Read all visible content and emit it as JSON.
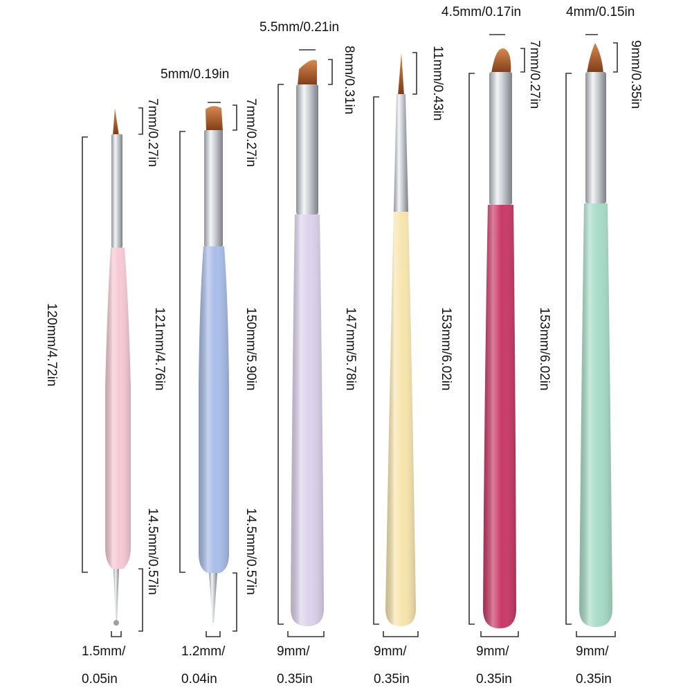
{
  "colors": {
    "background": "#ffffff",
    "dimension_line": "#333333",
    "ferrule": "#c9ccd0",
    "bristle": "#a85a2a"
  },
  "brushes": [
    {
      "id": "brush-1",
      "handle_color": "#f6c9d4",
      "tip": "liner",
      "tail": "dotting-ball",
      "top_width": "",
      "tip_length": "7mm/0.27in",
      "handle_length": "120mm/4.72in",
      "ferrule_length": "121mm/4.76in",
      "tail_length": "14.5mm/0.57in",
      "bottom_width": [
        "1.5mm/",
        "0.05in"
      ]
    },
    {
      "id": "brush-2",
      "handle_color": "#a9bde8",
      "tip": "flat",
      "tail": "dotting-point",
      "top_width": "5mm/0.19in",
      "tip_length": "7mm/0.27in",
      "handle_length": "150mm/5.90in",
      "ferrule_length": "",
      "tail_length": "14.5mm/0.57in",
      "bottom_width": [
        "1.2mm/",
        "0.04in"
      ]
    },
    {
      "id": "brush-3",
      "handle_color": "#dcd2ec",
      "tip": "angled",
      "tail": "rounded",
      "top_width": "5.5mm/0.21in",
      "tip_length": "8mm/0.31in",
      "handle_length": "147mm/5.78in",
      "ferrule_length": "",
      "tail_length": "",
      "bottom_width": [
        "9mm/",
        "0.35in"
      ]
    },
    {
      "id": "brush-4",
      "handle_color": "#f7e5ae",
      "tip": "liner",
      "tail": "rounded",
      "top_width": "",
      "tip_length": "11mm/0.43in",
      "handle_length": "153mm/6.02in",
      "ferrule_length": "",
      "tail_length": "",
      "bottom_width": [
        "9mm/",
        "0.35in"
      ]
    },
    {
      "id": "brush-5",
      "handle_color": "#c93a68",
      "tip": "oval",
      "tail": "rounded",
      "top_width": "4.5mm/0.17in",
      "tip_length": "7mm/0.27in",
      "handle_length": "153mm/6.02in",
      "ferrule_length": "",
      "tail_length": "",
      "bottom_width": [
        "9mm/",
        "0.35in"
      ]
    },
    {
      "id": "brush-6",
      "handle_color": "#a8dcc8",
      "tip": "pointed",
      "tail": "rounded",
      "top_width": "4mm/0.15in",
      "tip_length": "9mm/0.35in",
      "handle_length": "153mm/6.02in",
      "ferrule_length": "",
      "tail_length": "",
      "bottom_width": [
        "9mm/",
        "0.35in"
      ]
    }
  ]
}
